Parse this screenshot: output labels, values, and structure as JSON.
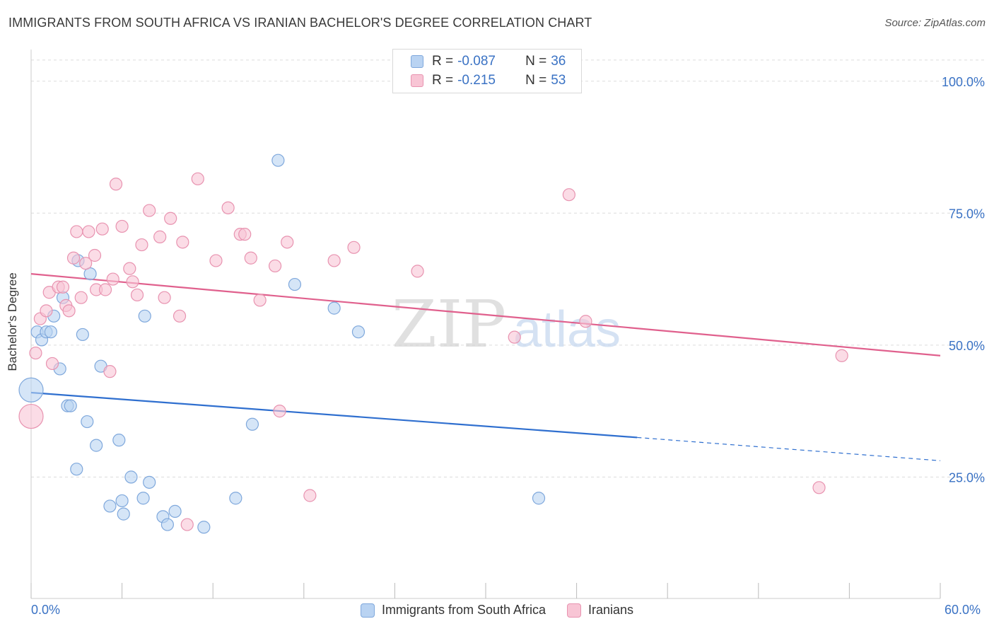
{
  "title": "IMMIGRANTS FROM SOUTH AFRICA VS IRANIAN BACHELOR'S DEGREE CORRELATION CHART",
  "source": "Source: ZipAtlas.com",
  "watermark": {
    "zip": "ZIP",
    "atlas": "atlas"
  },
  "legend_top": {
    "rows": [
      {
        "r_label": "R = ",
        "r_value": "-0.087",
        "n_label": "N = ",
        "n_value": "36"
      },
      {
        "r_label": "R = ",
        "r_value": "-0.215",
        "n_label": "N = ",
        "n_value": "53"
      }
    ]
  },
  "colors": {
    "blue_fill": "#b9d3f2",
    "blue_stroke": "#7fa8dc",
    "blue_line": "#2f6fcf",
    "pink_fill": "#f8c5d5",
    "pink_stroke": "#e893b0",
    "pink_line": "#e0608d",
    "axis_label": "#3a72c4",
    "grid": "#dcdcdc"
  },
  "chart_data": {
    "type": "scatter",
    "title": "IMMIGRANTS FROM SOUTH AFRICA VS IRANIAN BACHELOR'S DEGREE CORRELATION CHART",
    "xlabel": "",
    "ylabel": "Bachelor's Degree",
    "xlim": [
      0,
      60
    ],
    "ylim": [
      2,
      106
    ],
    "x_tick_labels": [
      "0.0%",
      "60.0%"
    ],
    "y_ticks": [
      25,
      50,
      75,
      100
    ],
    "y_tick_labels": [
      "25.0%",
      "50.0%",
      "75.0%",
      "100.0%"
    ],
    "series": [
      {
        "name": "Immigrants from South Africa",
        "color": "blue",
        "trend": {
          "x0": 0,
          "y0": 41.0,
          "x1": 40,
          "y1": 32.5,
          "dash_to_x": 60,
          "dash_to_y": 28.1
        },
        "points": [
          {
            "x": 0.0,
            "y": 41.5,
            "big": true
          },
          {
            "x": 0.4,
            "y": 52.5
          },
          {
            "x": 0.7,
            "y": 51.0
          },
          {
            "x": 1.0,
            "y": 52.5
          },
          {
            "x": 1.3,
            "y": 52.5
          },
          {
            "x": 1.5,
            "y": 55.5
          },
          {
            "x": 1.9,
            "y": 45.5
          },
          {
            "x": 2.1,
            "y": 59.0
          },
          {
            "x": 2.4,
            "y": 38.5
          },
          {
            "x": 2.6,
            "y": 38.5
          },
          {
            "x": 3.0,
            "y": 26.5
          },
          {
            "x": 3.1,
            "y": 66.0
          },
          {
            "x": 3.4,
            "y": 52.0
          },
          {
            "x": 3.7,
            "y": 35.5
          },
          {
            "x": 3.9,
            "y": 63.5
          },
          {
            "x": 4.3,
            "y": 31.0
          },
          {
            "x": 4.6,
            "y": 46.0
          },
          {
            "x": 5.2,
            "y": 19.5
          },
          {
            "x": 5.8,
            "y": 32.0
          },
          {
            "x": 6.0,
            "y": 20.5
          },
          {
            "x": 6.1,
            "y": 18.0
          },
          {
            "x": 6.6,
            "y": 25.0
          },
          {
            "x": 7.4,
            "y": 21.0
          },
          {
            "x": 7.5,
            "y": 55.5
          },
          {
            "x": 7.8,
            "y": 24.0
          },
          {
            "x": 8.7,
            "y": 17.5
          },
          {
            "x": 9.0,
            "y": 16.0
          },
          {
            "x": 9.5,
            "y": 18.5
          },
          {
            "x": 11.4,
            "y": 15.5
          },
          {
            "x": 13.5,
            "y": 21.0
          },
          {
            "x": 14.6,
            "y": 35.0
          },
          {
            "x": 16.3,
            "y": 85.0
          },
          {
            "x": 17.4,
            "y": 61.5
          },
          {
            "x": 20.0,
            "y": 57.0
          },
          {
            "x": 21.6,
            "y": 52.5
          },
          {
            "x": 33.5,
            "y": 21.0
          }
        ]
      },
      {
        "name": "Iranians",
        "color": "pink",
        "trend": {
          "x0": 0,
          "y0": 63.5,
          "x1": 60,
          "y1": 48.0
        },
        "points": [
          {
            "x": 0.0,
            "y": 36.5,
            "big": true
          },
          {
            "x": 0.3,
            "y": 48.5
          },
          {
            "x": 0.6,
            "y": 55.0
          },
          {
            "x": 1.0,
            "y": 56.5
          },
          {
            "x": 1.2,
            "y": 60.0
          },
          {
            "x": 1.4,
            "y": 46.5
          },
          {
            "x": 1.8,
            "y": 61.0
          },
          {
            "x": 2.1,
            "y": 61.0
          },
          {
            "x": 2.3,
            "y": 57.5
          },
          {
            "x": 2.5,
            "y": 56.5
          },
          {
            "x": 2.8,
            "y": 66.5
          },
          {
            "x": 3.0,
            "y": 71.5
          },
          {
            "x": 3.3,
            "y": 59.0
          },
          {
            "x": 3.6,
            "y": 65.5
          },
          {
            "x": 3.8,
            "y": 71.5
          },
          {
            "x": 4.2,
            "y": 67.0
          },
          {
            "x": 4.3,
            "y": 60.5
          },
          {
            "x": 4.7,
            "y": 72.0
          },
          {
            "x": 4.9,
            "y": 60.5
          },
          {
            "x": 5.2,
            "y": 45.0
          },
          {
            "x": 5.4,
            "y": 62.5
          },
          {
            "x": 5.6,
            "y": 80.5
          },
          {
            "x": 6.0,
            "y": 72.5
          },
          {
            "x": 6.5,
            "y": 64.5
          },
          {
            "x": 6.7,
            "y": 62.0
          },
          {
            "x": 7.0,
            "y": 59.5
          },
          {
            "x": 7.3,
            "y": 69.0
          },
          {
            "x": 7.8,
            "y": 75.5
          },
          {
            "x": 8.5,
            "y": 70.5
          },
          {
            "x": 8.8,
            "y": 59.0
          },
          {
            "x": 9.2,
            "y": 74.0
          },
          {
            "x": 9.8,
            "y": 55.5
          },
          {
            "x": 10.0,
            "y": 69.5
          },
          {
            "x": 10.3,
            "y": 16.0
          },
          {
            "x": 11.0,
            "y": 81.5
          },
          {
            "x": 12.2,
            "y": 66.0
          },
          {
            "x": 13.0,
            "y": 76.0
          },
          {
            "x": 13.8,
            "y": 71.0
          },
          {
            "x": 14.1,
            "y": 71.0
          },
          {
            "x": 14.5,
            "y": 66.5
          },
          {
            "x": 15.1,
            "y": 58.5
          },
          {
            "x": 16.1,
            "y": 65.0
          },
          {
            "x": 16.4,
            "y": 37.5
          },
          {
            "x": 16.9,
            "y": 69.5
          },
          {
            "x": 18.4,
            "y": 21.5
          },
          {
            "x": 20.0,
            "y": 66.0
          },
          {
            "x": 21.3,
            "y": 68.5
          },
          {
            "x": 25.5,
            "y": 64.0
          },
          {
            "x": 31.9,
            "y": 51.5
          },
          {
            "x": 35.5,
            "y": 78.5
          },
          {
            "x": 36.6,
            "y": 54.5
          },
          {
            "x": 52.0,
            "y": 23.0
          },
          {
            "x": 53.5,
            "y": 48.0
          }
        ]
      }
    ]
  },
  "bottom_legend": [
    "Immigrants from South Africa",
    "Iranians"
  ]
}
